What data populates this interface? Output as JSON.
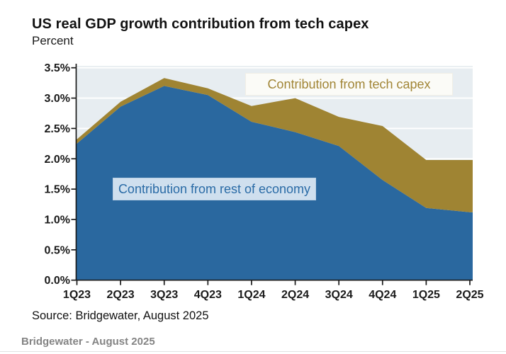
{
  "header": {
    "title": "US real GDP growth contribution from tech capex",
    "subtitle": "Percent"
  },
  "chart_data": {
    "type": "area",
    "stacked": true,
    "title": "US real GDP growth contribution from tech capex",
    "ylabel": "Percent",
    "categories": [
      "1Q23",
      "2Q23",
      "3Q23",
      "4Q23",
      "1Q24",
      "2Q24",
      "3Q24",
      "4Q24",
      "1Q25",
      "2Q25"
    ],
    "series": [
      {
        "name": "Contribution from rest of economy",
        "color": "#2a689f",
        "values": [
          2.25,
          2.86,
          3.2,
          3.05,
          2.61,
          2.44,
          2.21,
          1.65,
          1.19,
          1.12
        ]
      },
      {
        "name": "Contribution from tech capex",
        "color": "#9f8433",
        "values": [
          0.07,
          0.08,
          0.13,
          0.11,
          0.26,
          0.56,
          0.48,
          0.89,
          0.79,
          0.86
        ]
      }
    ],
    "stacked_totals": [
      2.32,
      2.94,
      3.33,
      3.16,
      2.87,
      3.0,
      2.69,
      2.54,
      1.98,
      1.98
    ],
    "ylim": [
      0,
      3.5
    ],
    "ytick_step": 0.5,
    "ytick_labels": [
      "0.0%",
      "0.5%",
      "1.0%",
      "1.5%",
      "2.0%",
      "2.5%",
      "3.0%",
      "3.5%"
    ],
    "grid": true,
    "plot_bg": "#e7edf1",
    "gridline_color": "#ffffff",
    "axis_color": "#1a1a1a",
    "legend_position": "labels inside plot"
  },
  "annotations": {
    "tech_label": {
      "text": "Contribution from tech capex",
      "color": "#a18536",
      "bg": "#fbfbf7",
      "border": "#f1efe6"
    },
    "economy_label": {
      "text": "Contribution from rest of economy",
      "color": "#2a6ba6",
      "bg": "#cfdfee",
      "border": "#bad0e5"
    }
  },
  "footer": {
    "source": "Source: Bridgewater, August 2025",
    "caption": "Bridgewater - August 2025"
  }
}
